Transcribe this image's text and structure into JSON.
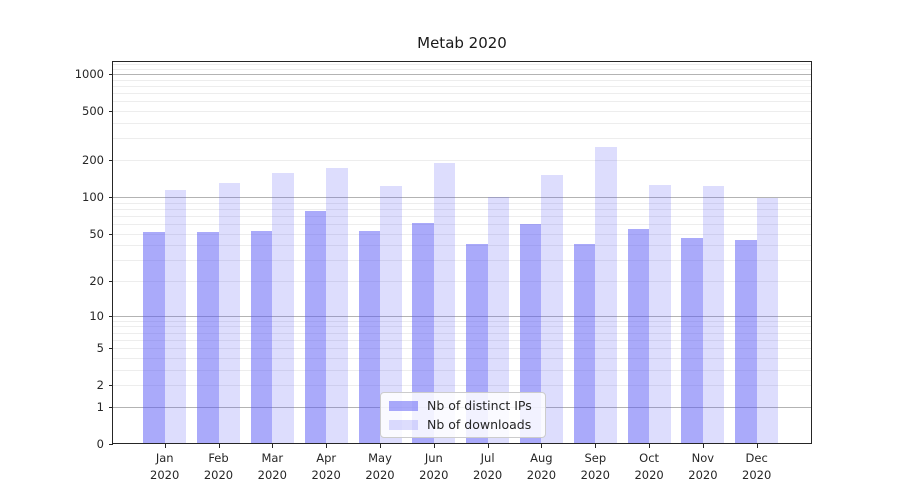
{
  "chart_data": {
    "type": "bar",
    "title": "Metab 2020",
    "categories": [
      "Jan",
      "Feb",
      "Mar",
      "Apr",
      "May",
      "Jun",
      "Jul",
      "Aug",
      "Sep",
      "Oct",
      "Nov",
      "Dec"
    ],
    "year": "2020",
    "series": [
      {
        "name": "Nb of distinct IPs",
        "values": [
          51,
          51,
          52,
          76,
          52,
          61,
          41,
          60,
          41,
          55,
          46,
          44
        ]
      },
      {
        "name": "Nb of downloads",
        "values": [
          115,
          130,
          158,
          172,
          123,
          190,
          100,
          151,
          255,
          125,
          122,
          98
        ]
      }
    ],
    "yscale": "log1p",
    "yticks": [
      1000,
      500,
      200,
      100,
      50,
      20,
      10,
      5,
      2,
      1,
      0
    ],
    "ylim": [
      0,
      1259
    ],
    "grid": true,
    "legend_position": "lower-center",
    "colors": {
      "bar_base": "85,85,245",
      "series_alpha": [
        0.5,
        0.2
      ],
      "major_grid": "#b3b3b3",
      "minor_grid": "#ededed",
      "spine": "#262626",
      "text": "#262626",
      "legend_border": "#cccccc"
    }
  }
}
